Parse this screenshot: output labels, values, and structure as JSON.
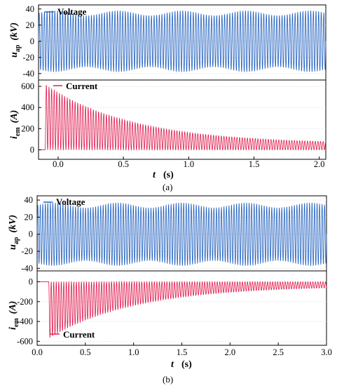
{
  "colors": {
    "voltage": "#1f5fbf",
    "current": "#e0174a",
    "axis": "#000000",
    "grid": "#d9d9d9"
  },
  "chart_data": [
    {
      "panel_label": "(a)",
      "x_label": "t",
      "x_unit": "(s)",
      "x_ticks": [
        "0.0",
        "0.5",
        "1.0",
        "1.5",
        "2.0"
      ],
      "xlim": [
        -0.15,
        2.05
      ],
      "voltage": {
        "type": "line",
        "series_name": "Voltage",
        "y_label": "u",
        "y_sub": "ap",
        "y_unit": "(kV)",
        "y_ticks": [
          "40",
          "20",
          "0",
          "-20",
          "-40"
        ],
        "ylim": [
          -48,
          45
        ],
        "amplitude_kv": 38
      },
      "current": {
        "type": "line",
        "series_name": "Current",
        "y_label": "i",
        "y_sub": "em",
        "y_unit": "(A)",
        "y_ticks": [
          "600",
          "400",
          "200",
          "0"
        ],
        "ylim": [
          -90,
          660
        ],
        "onset_s": -0.1,
        "peak_a": 620,
        "end_a": 55
      }
    },
    {
      "panel_label": "(b)",
      "x_label": "t",
      "x_unit": "(s)",
      "x_ticks": [
        "0.0",
        "0.5",
        "1.0",
        "1.5",
        "2.0",
        "2.5",
        "3.0"
      ],
      "xlim": [
        0,
        3
      ],
      "voltage": {
        "type": "line",
        "series_name": "Voltage",
        "y_label": "u",
        "y_sub": "ap",
        "y_unit": "(kV)",
        "y_ticks": [
          "40",
          "20",
          "0",
          "-20",
          "-40"
        ],
        "ylim": [
          -43,
          45
        ],
        "amplitude_kv": 37
      },
      "current": {
        "type": "line",
        "series_name": "Current",
        "y_label": "i",
        "y_sub": "em",
        "y_unit": "(A)",
        "y_ticks": [
          "0",
          "-200",
          "-400",
          "-600"
        ],
        "ylim": [
          -640,
          110
        ],
        "onset_s": 0.12,
        "peak_a": -570,
        "end_a": -40
      }
    }
  ]
}
